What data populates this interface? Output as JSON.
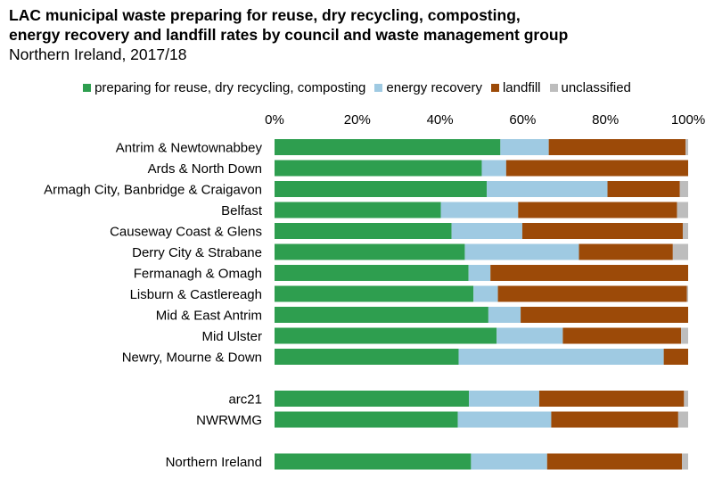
{
  "title_lines": [
    "LAC municipal waste preparing for reuse, dry recycling, composting,",
    "energy recovery and landfill rates by council and waste management group"
  ],
  "subtitle": "Northern Ireland, 2017/18",
  "chart_data": {
    "type": "bar",
    "orientation": "horizontal",
    "stacked": true,
    "title": "LAC municipal waste preparing for reuse, dry recycling, composting, energy recovery and landfill rates by council and waste management group",
    "subtitle": "Northern Ireland, 2017/18",
    "xlim": [
      0,
      100
    ],
    "x_ticks": [
      "0%",
      "20%",
      "40%",
      "60%",
      "80%",
      "100%"
    ],
    "x_axis_position": "top",
    "legend_position": "top",
    "grid": false,
    "categories": [
      "Antrim & Newtownabbey",
      "Ards & North Down",
      "Armagh City, Banbridge & Craigavon",
      "Belfast",
      "Causeway Coast & Glens",
      "Derry City & Strabane",
      "Fermanagh & Omagh",
      "Lisburn & Castlereagh",
      "Mid & East Antrim",
      "Mid Ulster",
      "Newry, Mourne & Down",
      "",
      "arc21",
      "NWRWMG",
      "",
      "Northern Ireland"
    ],
    "series": [
      {
        "name": "preparing for reuse, dry recycling, composting",
        "color": "#2e9e4f",
        "values": [
          54.6,
          50.1,
          51.3,
          40.2,
          42.8,
          46.0,
          46.9,
          48.1,
          51.7,
          53.7,
          44.5,
          null,
          47.0,
          44.3,
          null,
          47.5
        ]
      },
      {
        "name": "energy recovery",
        "color": "#9fcae2",
        "values": [
          11.7,
          5.9,
          29.2,
          18.7,
          17.1,
          27.6,
          5.3,
          5.9,
          7.8,
          16.0,
          49.6,
          null,
          17.0,
          22.6,
          null,
          18.4
        ]
      },
      {
        "name": "landfill",
        "color": "#9c4a08",
        "values": [
          33.1,
          44.0,
          17.5,
          38.4,
          38.8,
          22.7,
          47.8,
          45.7,
          40.5,
          28.6,
          5.9,
          null,
          35.0,
          30.7,
          null,
          32.6
        ]
      },
      {
        "name": "unclassified",
        "color": "#bdbdbd",
        "values": [
          0.6,
          0.0,
          2.0,
          2.7,
          1.3,
          3.7,
          0.0,
          0.3,
          0.0,
          1.7,
          0.0,
          null,
          1.0,
          2.4,
          null,
          1.5
        ]
      }
    ]
  }
}
